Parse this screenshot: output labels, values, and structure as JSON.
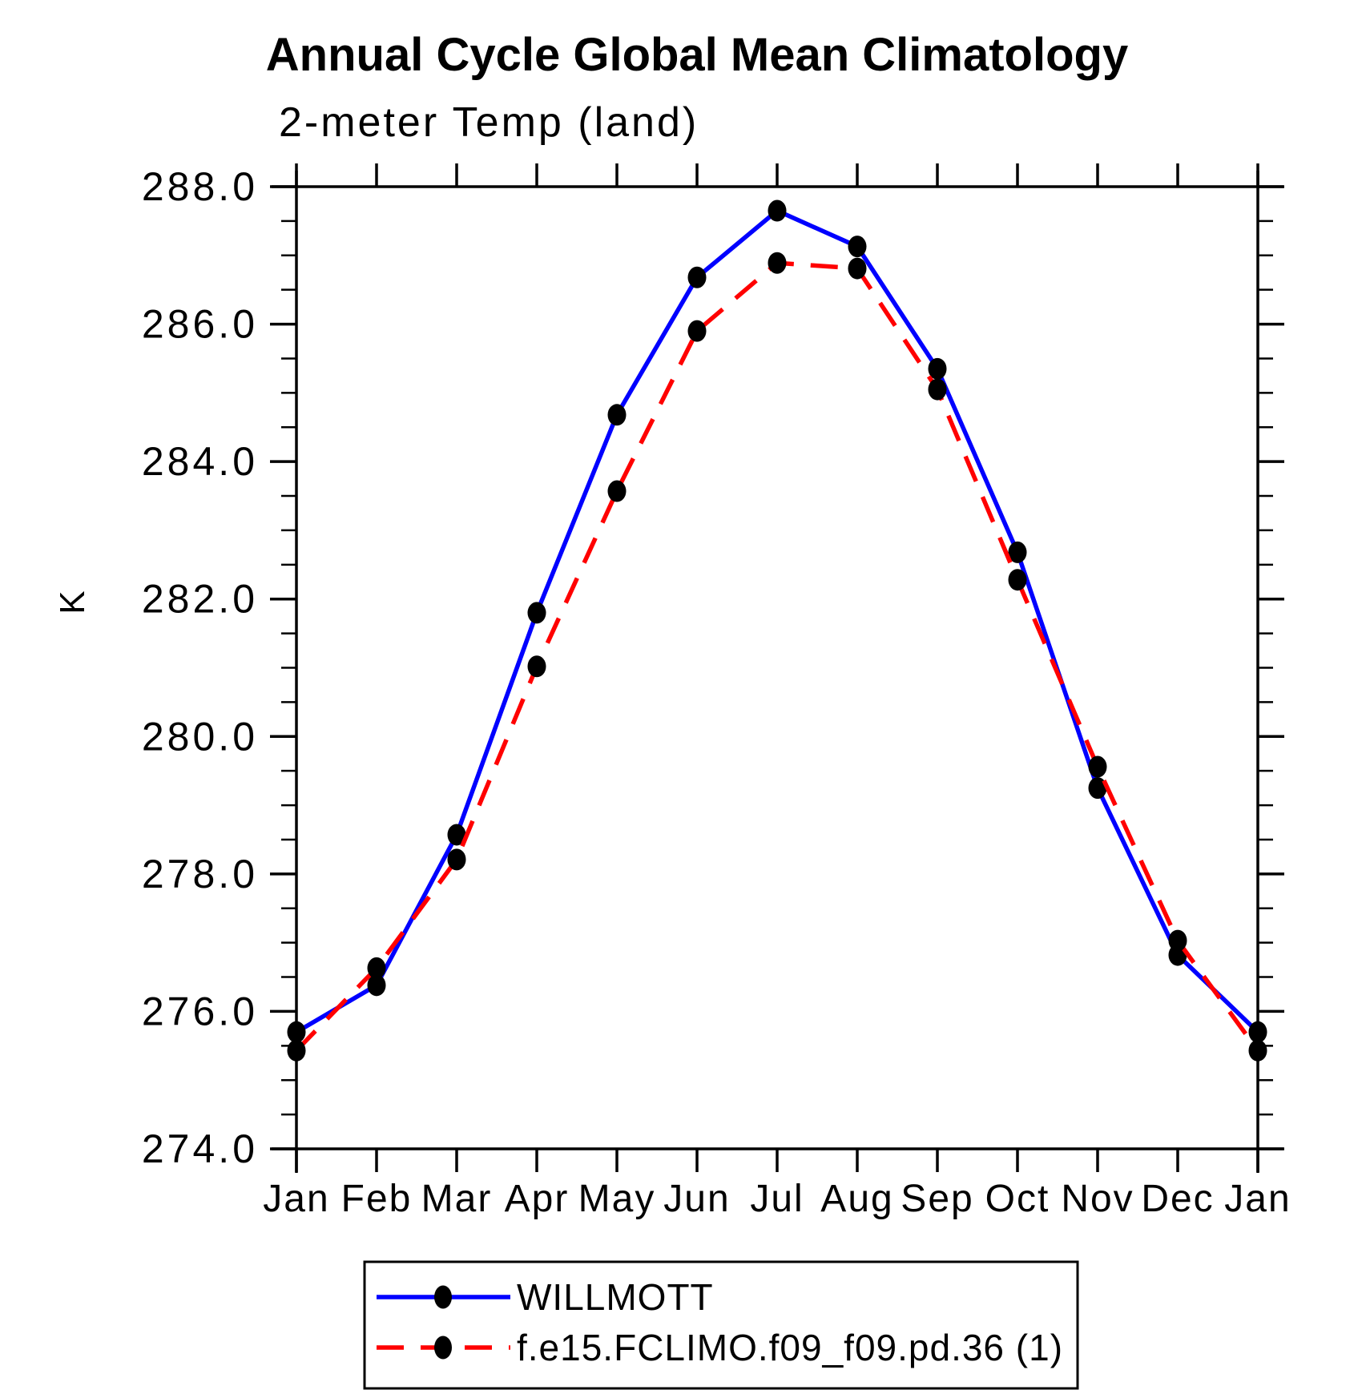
{
  "chart_data": {
    "type": "line",
    "title": "Annual Cycle Global Mean Climatology",
    "subtitle": "2-meter Temp (land)",
    "ylabel": "K",
    "categories": [
      "Jan",
      "Feb",
      "Mar",
      "Apr",
      "May",
      "Jun",
      "Jul",
      "Aug",
      "Sep",
      "Oct",
      "Nov",
      "Dec",
      "Jan"
    ],
    "ylim": [
      274.0,
      288.0
    ],
    "ytick_major_step": 2.0,
    "ytick_minor_step": 0.5,
    "ytick_labels": [
      "274.0",
      "276.0",
      "278.0",
      "280.0",
      "282.0",
      "284.0",
      "286.0",
      "288.0"
    ],
    "grid": false,
    "legend_position": "bottom",
    "axis_color": "#000000",
    "marker_color": "#000000",
    "series": [
      {
        "name": "WILLMOTT",
        "color": "#0000ff",
        "style": "solid",
        "marker": "filled-circle",
        "values": [
          275.7,
          276.38,
          278.57,
          281.8,
          284.68,
          286.68,
          287.65,
          287.13,
          285.35,
          282.68,
          279.25,
          276.82,
          275.7
        ]
      },
      {
        "name": "f.e15.FCLIMO.f09_f09.pd.36 (1)",
        "color": "#ff0000",
        "style": "dashed",
        "marker": "filled-circle",
        "values": [
          275.43,
          276.63,
          278.21,
          281.02,
          283.57,
          285.9,
          286.89,
          286.81,
          285.05,
          282.28,
          279.56,
          277.03,
          275.43
        ]
      }
    ]
  }
}
